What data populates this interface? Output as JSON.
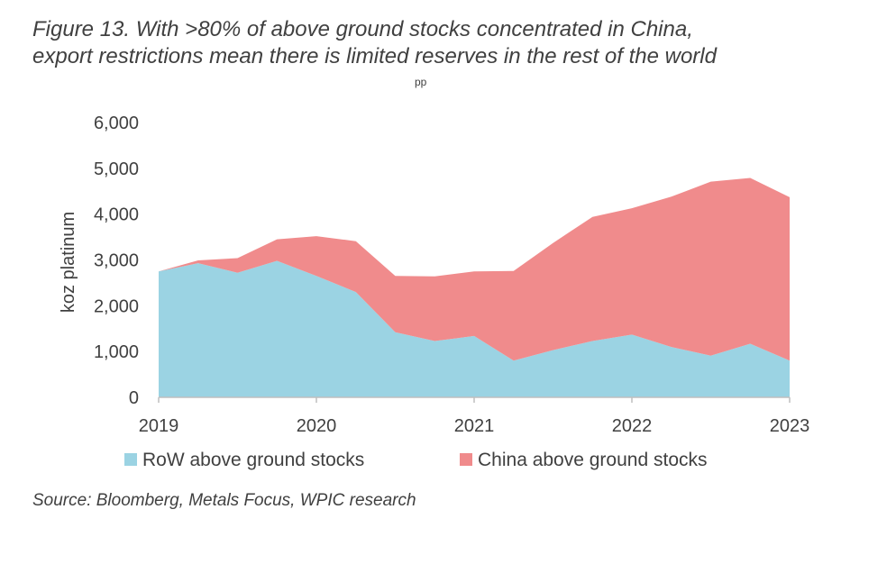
{
  "header": {
    "title_line1": "Figure 13. With >80% of above ground stocks concentrated in China,",
    "title_line2": "export restrictions mean there is limited reserves in the rest of the world",
    "subnote": "pp"
  },
  "footer": {
    "source": "Source: Bloomberg, Metals Focus, WPIC research"
  },
  "colors": {
    "row": "#9bd3e3",
    "china": "#f08b8c",
    "axis": "#bfbfbf",
    "text": "#404040"
  },
  "chart_data": {
    "type": "area",
    "stacked": true,
    "title": "",
    "xlabel": "",
    "ylabel": "koz platinum",
    "ylim": [
      0,
      6000
    ],
    "yticks": [
      0,
      1000,
      2000,
      3000,
      4000,
      5000,
      6000
    ],
    "ytick_labels": [
      "0",
      "1,000",
      "2,000",
      "3,000",
      "4,000",
      "5,000",
      "6,000"
    ],
    "xlim": [
      2019,
      2023
    ],
    "xticks": [
      2019,
      2020,
      2021,
      2022,
      2023
    ],
    "xtick_labels": [
      "2019",
      "2020",
      "2021",
      "2022",
      "2023"
    ],
    "x": [
      2019.0,
      2019.25,
      2019.5,
      2019.75,
      2020.0,
      2020.25,
      2020.5,
      2020.75,
      2021.0,
      2021.25,
      2021.5,
      2021.75,
      2022.0,
      2022.25,
      2022.5,
      2022.75,
      2023.0
    ],
    "series": [
      {
        "name": "RoW above ground stocks",
        "color": "#9bd3e3",
        "values": [
          2750,
          2930,
          2720,
          2980,
          2650,
          2300,
          1420,
          1230,
          1340,
          800,
          1030,
          1230,
          1370,
          1100,
          910,
          1170,
          800
        ]
      },
      {
        "name": "China above ground stocks",
        "color": "#f08b8c",
        "values": [
          0,
          60,
          320,
          470,
          870,
          1110,
          1230,
          1410,
          1410,
          1960,
          2340,
          2710,
          2760,
          3280,
          3800,
          3620,
          3570
        ]
      }
    ],
    "legend_position": "bottom"
  }
}
